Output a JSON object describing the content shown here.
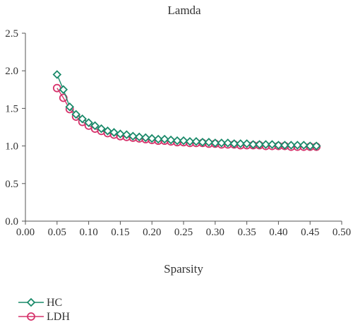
{
  "chart_data": {
    "type": "line",
    "title": "Lamda",
    "xlabel": "Sparsity",
    "ylabel": "",
    "xlim": [
      0.0,
      0.5
    ],
    "ylim": [
      0.0,
      2.5
    ],
    "xticks": [
      "0.00",
      "0.05",
      "0.10",
      "0.15",
      "0.20",
      "0.25",
      "0.30",
      "0.35",
      "0.40",
      "0.45",
      "0.50"
    ],
    "yticks": [
      "0.0",
      "0.5",
      "1.0",
      "1.5",
      "2.0",
      "2.5"
    ],
    "grid": false,
    "legend_position": "bottom-left",
    "x": [
      0.05,
      0.06,
      0.07,
      0.08,
      0.09,
      0.1,
      0.11,
      0.12,
      0.13,
      0.14,
      0.15,
      0.16,
      0.17,
      0.18,
      0.19,
      0.2,
      0.21,
      0.22,
      0.23,
      0.24,
      0.25,
      0.26,
      0.27,
      0.28,
      0.29,
      0.3,
      0.31,
      0.32,
      0.33,
      0.34,
      0.35,
      0.36,
      0.37,
      0.38,
      0.39,
      0.4,
      0.41,
      0.42,
      0.43,
      0.44,
      0.45,
      0.46
    ],
    "series": [
      {
        "name": "HC",
        "color": "#1a8a6a",
        "marker": "diamond",
        "values": [
          1.95,
          1.75,
          1.52,
          1.42,
          1.36,
          1.31,
          1.27,
          1.23,
          1.2,
          1.18,
          1.16,
          1.15,
          1.13,
          1.12,
          1.11,
          1.1,
          1.09,
          1.09,
          1.08,
          1.07,
          1.07,
          1.06,
          1.06,
          1.05,
          1.05,
          1.04,
          1.04,
          1.04,
          1.03,
          1.03,
          1.03,
          1.02,
          1.02,
          1.02,
          1.02,
          1.01,
          1.01,
          1.01,
          1.01,
          1.01,
          1.0,
          1.0
        ]
      },
      {
        "name": "LDH",
        "color": "#d6336c",
        "marker": "circle",
        "values": [
          1.77,
          1.64,
          1.49,
          1.39,
          1.32,
          1.27,
          1.23,
          1.2,
          1.17,
          1.15,
          1.13,
          1.12,
          1.11,
          1.1,
          1.09,
          1.08,
          1.07,
          1.07,
          1.06,
          1.05,
          1.05,
          1.04,
          1.04,
          1.04,
          1.03,
          1.03,
          1.02,
          1.02,
          1.02,
          1.01,
          1.01,
          1.01,
          1.01,
          1.0,
          1.0,
          1.0,
          1.0,
          0.99,
          0.99,
          0.99,
          0.99,
          0.99
        ]
      }
    ]
  }
}
